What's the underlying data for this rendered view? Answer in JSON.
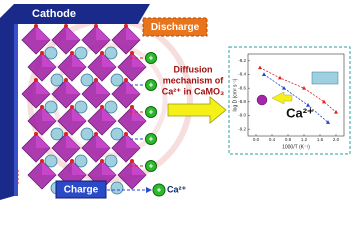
{
  "cathode_label": "Cathode",
  "discharge_label": "Discharge",
  "charge_label": "Charge",
  "diffusion_title": [
    "Diffusion",
    "mechanism of",
    "Ca²⁺ in CaMO₃"
  ],
  "ion_label": "Ca²⁺",
  "inset": {
    "title": "Ca²⁺",
    "x_label": "1000/T (K⁻¹)",
    "y_label": "log D (cm² s⁻¹)",
    "xlim": [
      -0.2,
      2.2
    ],
    "ylim": [
      -9.3,
      -8.1
    ],
    "xticks": [
      {
        "value": 0,
        "label": "0.0"
      },
      0.4,
      0.8,
      1.2,
      1.6,
      {
        "value": 2,
        "label": "2.0"
      }
    ],
    "yticks": [
      -8.2,
      -8.4,
      -8.6,
      -8.8,
      {
        "value": -9,
        "label": "-9.0"
      },
      -9.2
    ],
    "series": [
      {
        "color": "#e02020",
        "x": [
          0.1,
          0.6,
          1.2,
          1.7,
          2.0
        ],
        "values": [
          -8.3,
          -8.45,
          -8.6,
          -8.8,
          -8.95
        ]
      },
      {
        "color": "#2040d0",
        "x": [
          0.2,
          0.7,
          1.3,
          1.8
        ],
        "values": [
          -8.4,
          -8.6,
          -8.85,
          -9.1
        ]
      }
    ]
  }
}
